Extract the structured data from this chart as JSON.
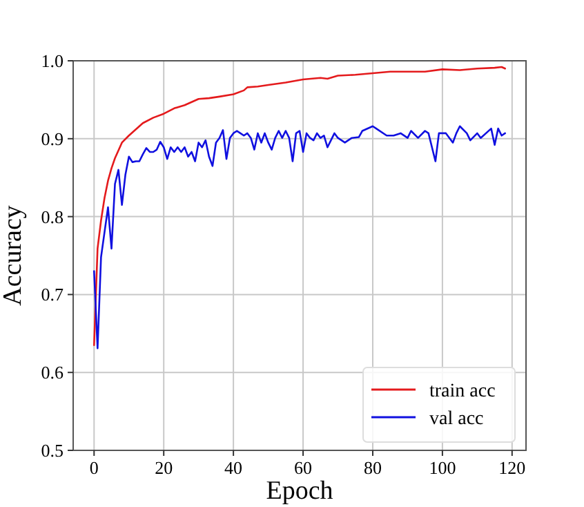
{
  "chart_data": {
    "type": "line",
    "xlabel": "Epoch",
    "ylabel": "Accuracy",
    "xlim": [
      -6,
      124
    ],
    "xticks": [
      0,
      20,
      40,
      60,
      80,
      100,
      120
    ],
    "ylim": [
      0.5,
      1
    ],
    "yticks": [
      0.5,
      0.6,
      0.7,
      0.8,
      0.9,
      {
        "value": 1,
        "label": "1.0"
      }
    ],
    "grid": true,
    "legend": "bottom right",
    "line_style": "solid",
    "marker": "none",
    "series": [
      {
        "name": "train acc",
        "color": "#e41a1c",
        "x": [
          0,
          1,
          2,
          3,
          4,
          5,
          6,
          7,
          8,
          10,
          12,
          14,
          17,
          20,
          23,
          26,
          30,
          33,
          36,
          40,
          43,
          44,
          47,
          50,
          55,
          60,
          65,
          67,
          70,
          75,
          80,
          85,
          90,
          95,
          100,
          105,
          110,
          115,
          117,
          118
        ],
        "values": [
          0.635,
          0.759,
          0.795,
          0.824,
          0.846,
          0.862,
          0.875,
          0.885,
          0.895,
          0.904,
          0.912,
          0.92,
          0.927,
          0.932,
          0.939,
          0.943,
          0.951,
          0.952,
          0.954,
          0.957,
          0.962,
          0.966,
          0.967,
          0.969,
          0.972,
          0.976,
          0.978,
          0.977,
          0.981,
          0.982,
          0.984,
          0.986,
          0.986,
          0.986,
          0.989,
          0.988,
          0.99,
          0.991,
          0.992,
          0.99
        ]
      },
      {
        "name": "val acc",
        "color": "#1010e0",
        "x": [
          0,
          1,
          2,
          3,
          4,
          5,
          6,
          7,
          8,
          9,
          10,
          11,
          12,
          13,
          14,
          15,
          16,
          17,
          18,
          19,
          20,
          21,
          22,
          23,
          24,
          25,
          26,
          27,
          28,
          29,
          30,
          31,
          32,
          33,
          34,
          35,
          36,
          37,
          38,
          39,
          40,
          41,
          42,
          43,
          44,
          45,
          46,
          47,
          48,
          49,
          50,
          51,
          52,
          53,
          54,
          55,
          56,
          57,
          58,
          59,
          60,
          61,
          62,
          63,
          64,
          65,
          66,
          67,
          68,
          69,
          70,
          72,
          74,
          76,
          77,
          80,
          81,
          84,
          86,
          88,
          90,
          91,
          93,
          95,
          96,
          98,
          99,
          101,
          103,
          104,
          105,
          107,
          108,
          110,
          111,
          114,
          115,
          116,
          117,
          118
        ],
        "values": [
          0.73,
          0.631,
          0.748,
          0.78,
          0.812,
          0.759,
          0.842,
          0.86,
          0.815,
          0.854,
          0.877,
          0.87,
          0.871,
          0.871,
          0.88,
          0.888,
          0.883,
          0.883,
          0.886,
          0.896,
          0.889,
          0.874,
          0.889,
          0.883,
          0.889,
          0.883,
          0.889,
          0.877,
          0.883,
          0.871,
          0.895,
          0.889,
          0.898,
          0.877,
          0.865,
          0.895,
          0.901,
          0.911,
          0.874,
          0.901,
          0.907,
          0.91,
          0.907,
          0.904,
          0.907,
          0.901,
          0.886,
          0.907,
          0.895,
          0.907,
          0.895,
          0.886,
          0.901,
          0.91,
          0.901,
          0.91,
          0.901,
          0.871,
          0.907,
          0.91,
          0.883,
          0.907,
          0.901,
          0.898,
          0.907,
          0.901,
          0.904,
          0.889,
          0.898,
          0.907,
          0.901,
          0.895,
          0.901,
          0.902,
          0.91,
          0.916,
          0.913,
          0.904,
          0.904,
          0.907,
          0.901,
          0.91,
          0.901,
          0.91,
          0.907,
          0.871,
          0.907,
          0.907,
          0.895,
          0.907,
          0.916,
          0.907,
          0.898,
          0.907,
          0.901,
          0.913,
          0.892,
          0.913,
          0.904,
          0.907
        ]
      }
    ]
  }
}
